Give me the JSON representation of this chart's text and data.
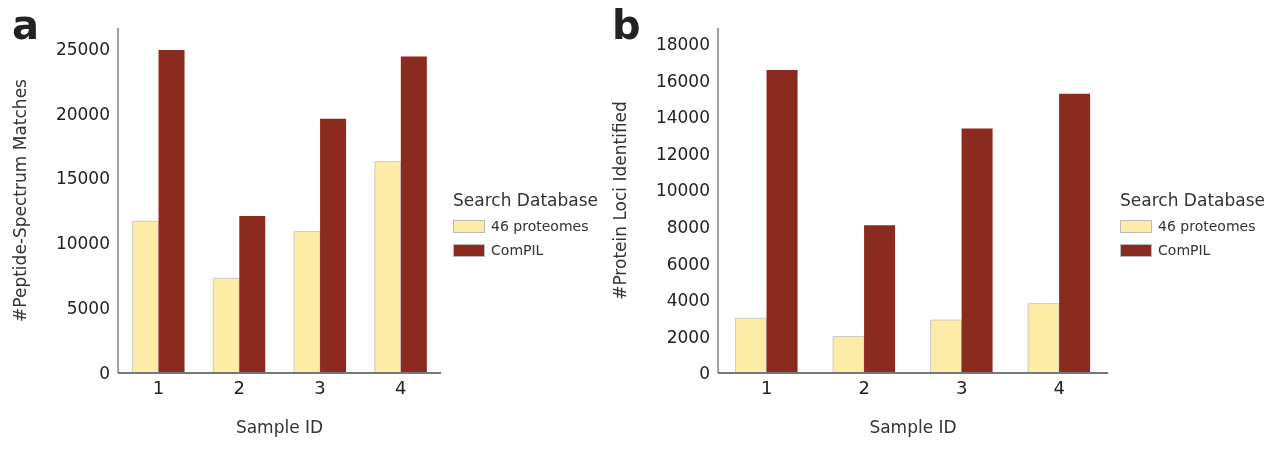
{
  "chart_data": [
    {
      "type": "bar",
      "title": "a",
      "xlabel": "Sample ID",
      "ylabel": "#Peptide-Spectrum Matches",
      "legend_title": "Search Database",
      "categories": [
        "1",
        "2",
        "3",
        "4"
      ],
      "series": [
        {
          "name": "46 proteomes",
          "color": "#fdeca6",
          "values": [
            11700,
            7300,
            10900,
            16300
          ]
        },
        {
          "name": "ComPIL",
          "color": "#8b2a1e",
          "values": [
            24900,
            12100,
            19600,
            24400
          ]
        }
      ],
      "ylim": [
        0,
        26600
      ],
      "yticks": [
        0,
        5000,
        10000,
        15000,
        20000,
        25000
      ],
      "grid": false,
      "legend": "right"
    },
    {
      "type": "bar",
      "title": "b",
      "xlabel": "Sample ID",
      "ylabel": "#Protein Loci Identified",
      "legend_title": "Search Database",
      "categories": [
        "1",
        "2",
        "3",
        "4"
      ],
      "series": [
        {
          "name": "46 proteomes",
          "color": "#fdeca6",
          "values": [
            3000,
            2000,
            2900,
            3800
          ]
        },
        {
          "name": "ComPIL",
          "color": "#8b2a1e",
          "values": [
            16600,
            8100,
            13400,
            15300
          ]
        }
      ],
      "ylim": [
        0,
        18900
      ],
      "yticks": [
        0,
        2000,
        4000,
        6000,
        8000,
        10000,
        12000,
        14000,
        16000,
        18000
      ],
      "grid": false,
      "legend": "right"
    }
  ]
}
